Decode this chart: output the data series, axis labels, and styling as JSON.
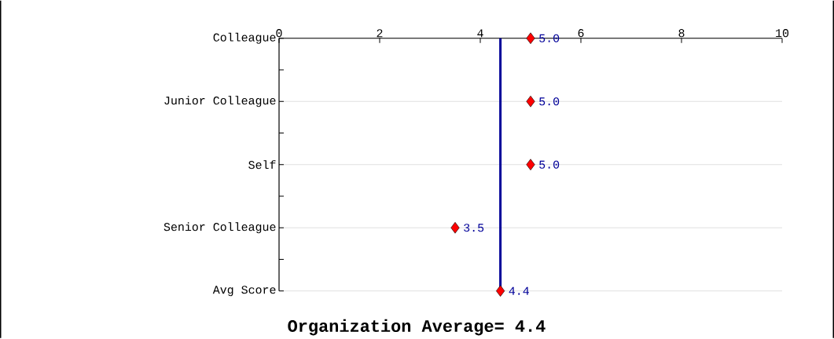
{
  "chart_data": {
    "type": "scatter",
    "orientation": "horizontal",
    "title": "Organization Average= 4.4",
    "categories": [
      "Colleague",
      "Junior Colleague",
      "Self",
      "Senior Colleague",
      "Avg Score"
    ],
    "values": [
      5.0,
      5.0,
      5.0,
      3.5,
      4.4
    ],
    "value_labels": [
      "5.0",
      "5.0",
      "5.0",
      "3.5",
      "4.4"
    ],
    "color": "#ff0000",
    "marker": "diamond",
    "xlim": [
      0,
      10
    ],
    "xticks": [
      0,
      2,
      4,
      6,
      8,
      10
    ],
    "grid": "y",
    "ref_lines": [
      {
        "axis": "x",
        "value": 4.4,
        "color": "#000099"
      }
    ]
  }
}
